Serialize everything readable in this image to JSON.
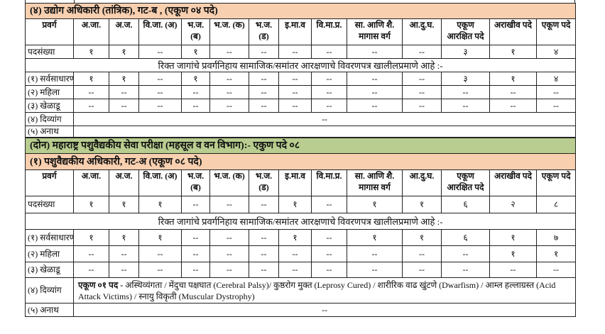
{
  "colors": {
    "section_bg": "#f8d0b0",
    "exam_bg": "#b8cd8f",
    "border": "#222222"
  },
  "columns": [
    "प्रवर्ग",
    "अ.जा.",
    "अ.ज.",
    "वि.जा. (अ)",
    "भ.ज. (ब)",
    "भ.ज. (क)",
    "भ.ज. (ड)",
    "इ.मा.व",
    "वि.मा.प्र.",
    "सा. आणि शै. मागास वर्ग",
    "आ.दु.घ.",
    "एकूण आरक्षित पदे",
    "अराखीव पदे",
    "एकूण पदे"
  ],
  "note": "रिक्त जागांचे प्रवर्गनिहाय सामाजिक/समांतर आरक्षणाचे विवरणपत्र खालीलप्रमाणे आहे :-",
  "blocks": [
    {
      "title": "(४)   उद्योग अधिकारी (तांत्रिक), गट-ब , (एकूण ०४ पदे)",
      "posts": {
        "label": "पदसंख्या",
        "values": [
          "१",
          "१",
          "--",
          "१",
          "--",
          "--",
          "--",
          "--",
          "--",
          "--",
          "३",
          "१",
          "४"
        ]
      },
      "rows": [
        {
          "label": "(१) सर्वसाधारण",
          "values": [
            "१",
            "१",
            "--",
            "१",
            "--",
            "--",
            "--",
            "--",
            "--",
            "--",
            "३",
            "१",
            "४"
          ]
        },
        {
          "label": "(२) महिला",
          "values": [
            "--",
            "--",
            "--",
            "--",
            "--",
            "--",
            "--",
            "--",
            "--",
            "--",
            "--",
            "--",
            "--"
          ]
        },
        {
          "label": "(३) खेळाडू",
          "values": [
            "--",
            "--",
            "--",
            "--",
            "--",
            "--",
            "--",
            "--",
            "--",
            "--",
            "--",
            "--",
            "--"
          ]
        }
      ],
      "divyang": {
        "label": "(४) दिव्यांग",
        "text": "--"
      },
      "anath": {
        "label": "(५) अनाथ",
        "text": ""
      }
    },
    {
      "exam_title": "(दोन) महाराष्ट्र पशुवैद्यकीय सेवा परीक्षा (महसूल व वन विभाग):- एकुण पदे ०८",
      "title": "(१) पशुवैद्यकीय अधिकारी, गट-अ (एकूण ०८ पदे)",
      "posts": {
        "label": "पदसंख्या",
        "values": [
          "१",
          "१",
          "१",
          "--",
          "--",
          "--",
          "१",
          "--",
          "१",
          "१",
          "६",
          "२",
          "८"
        ]
      },
      "rows": [
        {
          "label": "(१) सर्वसाधारण",
          "values": [
            "१",
            "१",
            "१",
            "--",
            "--",
            "--",
            "१",
            "--",
            "१",
            "१",
            "६",
            "१",
            "७"
          ]
        },
        {
          "label": "(२) महिला",
          "values": [
            "--",
            "--",
            "--",
            "--",
            "--",
            "--",
            "--",
            "--",
            "--",
            "--",
            "--",
            "१",
            "१"
          ]
        },
        {
          "label": "(३) खेळाडू",
          "values": [
            "--",
            "--",
            "--",
            "--",
            "--",
            "--",
            "--",
            "--",
            "--",
            "--",
            "--",
            "--",
            "--"
          ]
        }
      ],
      "divyang": {
        "label": "(४) दिव्यांग",
        "bold": "एकूण ०१ पद -",
        "text": " अस्थिव्यंगता / मेंदुचा पक्षघात (Cerebral Palsy)/ कुष्ठरोग मुक्त (Leprosy Cured) / शारीरिक वाढ खुंटणे (Dwarfism) / आम्ल हल्लाग्रस्त (Acid Attack Victims) / स्नायु विकृती (Muscular Dystrophy)"
      },
      "anath": {
        "label": "(५) अनाथ",
        "text": "--"
      }
    }
  ]
}
